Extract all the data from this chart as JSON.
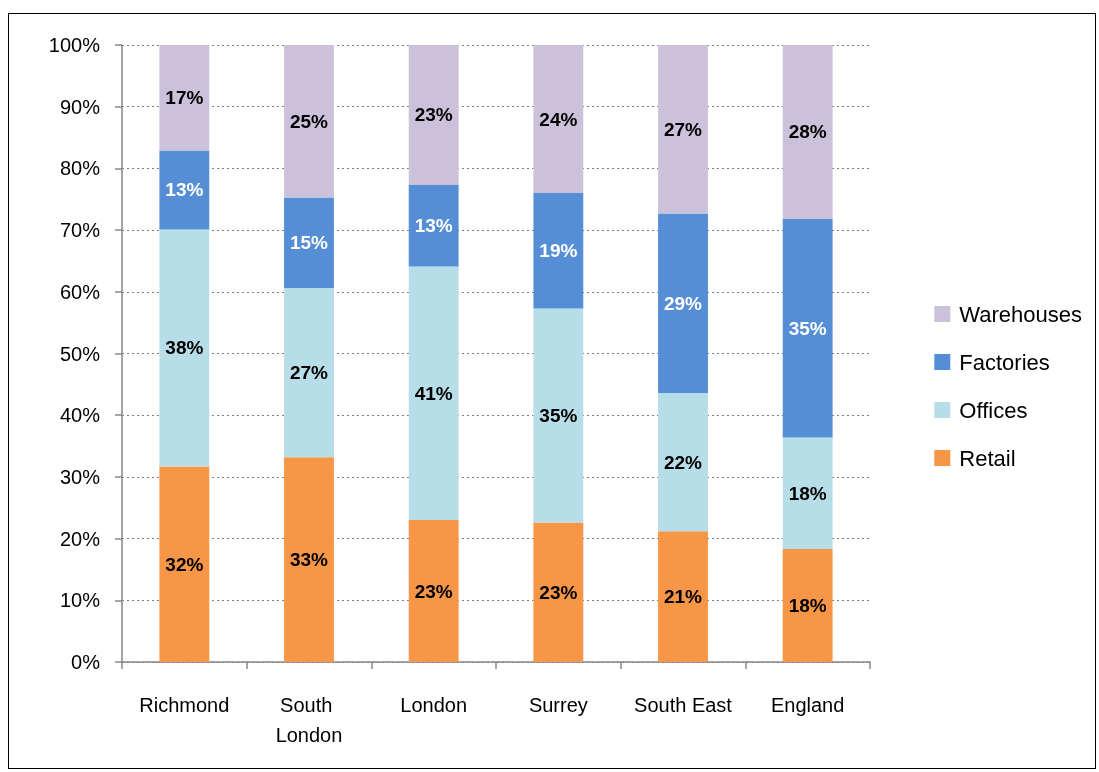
{
  "chart_data": {
    "type": "bar",
    "stacked": true,
    "categories": [
      "Richmond",
      "South London",
      "London",
      "Surrey",
      "South East",
      "England"
    ],
    "series": [
      {
        "name": "Retail",
        "color": "#f79646",
        "values": [
          31.7,
          33.2,
          23.0,
          22.6,
          21.2,
          18.3
        ],
        "value_labels": [
          "32%",
          "33%",
          "23%",
          "23%",
          "21%",
          "18%"
        ]
      },
      {
        "name": "Offices",
        "color": "#b7dde8",
        "values": [
          38.4,
          27.4,
          41.1,
          34.7,
          22.4,
          18.1
        ],
        "value_labels": [
          "38%",
          "27%",
          "41%",
          "35%",
          "22%",
          "18%"
        ]
      },
      {
        "name": "Factories",
        "color": "#558ed5",
        "values": [
          12.8,
          14.7,
          13.3,
          18.7,
          29.1,
          35.4
        ],
        "value_labels": [
          "13%",
          "15%",
          "13%",
          "19%",
          "29%",
          "35%"
        ]
      },
      {
        "name": "Warehouses",
        "color": "#ccc1da",
        "values": [
          17.1,
          24.7,
          22.6,
          24.0,
          27.3,
          28.2
        ],
        "value_labels": [
          "17%",
          "25%",
          "23%",
          "24%",
          "27%",
          "28%"
        ]
      }
    ],
    "ylim": [
      0,
      100
    ],
    "yticks": [
      {
        "value": 0,
        "label": "0%"
      },
      {
        "value": 10,
        "label": "10%"
      },
      {
        "value": 20,
        "label": "20%"
      },
      {
        "value": 30,
        "label": "30%"
      },
      {
        "value": 40,
        "label": "40%"
      },
      {
        "value": 50,
        "label": "50%"
      },
      {
        "value": 60,
        "label": "60%"
      },
      {
        "value": 70,
        "label": "70%"
      },
      {
        "value": 80,
        "label": "80%"
      },
      {
        "value": 90,
        "label": "90%"
      },
      {
        "value": 100,
        "label": "100%"
      }
    ],
    "grid": "y",
    "legend": "right"
  }
}
